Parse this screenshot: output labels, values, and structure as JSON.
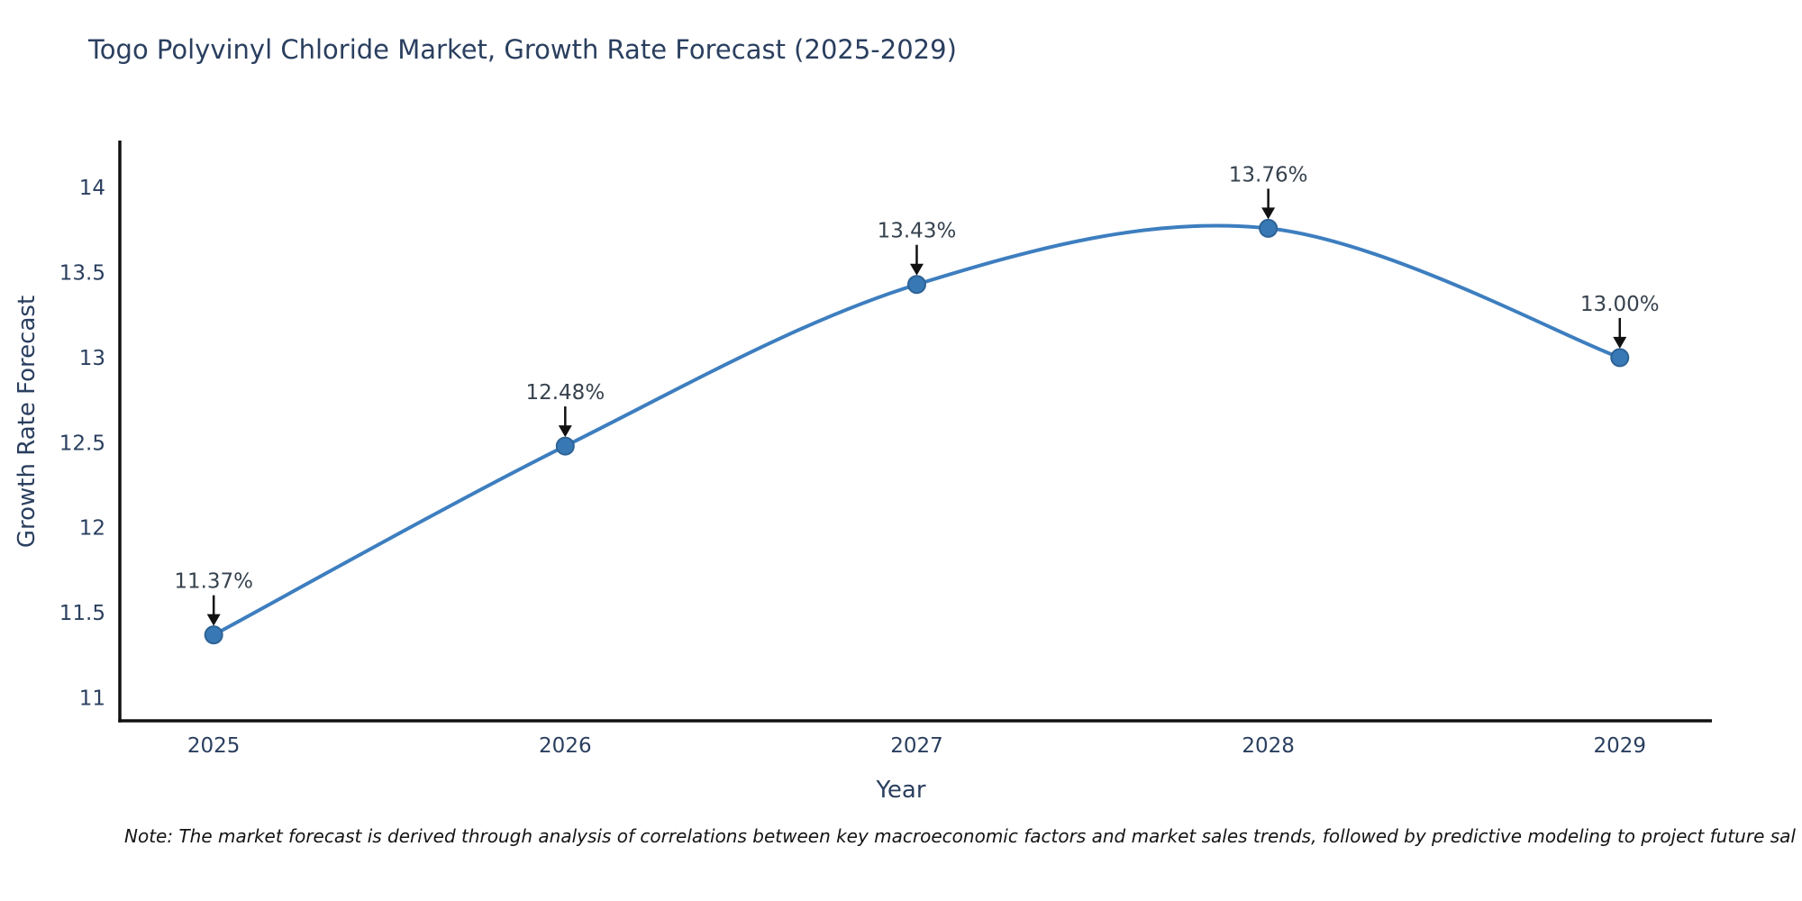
{
  "chart": {
    "title": "Togo Polyvinyl Chloride Market, Growth Rate Forecast (2025-2029)",
    "xlabel": "Year",
    "ylabel": "Growth Rate Forecast"
  },
  "note": {
    "text": "Note: The market forecast is derived through analysis of correlations between key macroeconomic factors and market sales trends, followed by predictive modeling to project future sal"
  },
  "chart_data": {
    "type": "line",
    "title": "Togo Polyvinyl Chloride Market, Growth Rate Forecast (2025-2029)",
    "xlabel": "Year",
    "ylabel": "Growth Rate Forecast",
    "x": [
      2025,
      2026,
      2027,
      2028,
      2029
    ],
    "series": [
      {
        "name": "Growth Rate Forecast",
        "values": [
          11.37,
          12.48,
          13.43,
          13.76,
          13.0
        ],
        "point_labels": [
          "11.37%",
          "12.48%",
          "13.43%",
          "13.76%",
          "13.00%"
        ]
      }
    ],
    "x_tick_labels": [
      "2025",
      "2026",
      "2027",
      "2028",
      "2029"
    ],
    "y_tick_values": [
      11,
      11.5,
      12,
      12.5,
      13,
      13.5,
      14
    ],
    "y_tick_labels": [
      "11",
      "11.5",
      "12",
      "12.5",
      "13",
      "13.5",
      "14"
    ],
    "xlim": [
      2024.733,
      2029.262
    ],
    "ylim": [
      10.865,
      14.276
    ],
    "grid": false,
    "legend_position": "none",
    "line_shape": "spline",
    "annotation_style": "arrow-down-to-point",
    "colors": {
      "line": "#3d7ebf",
      "marker_fill": "#3878b4",
      "marker_edge": "#2d6396",
      "axis": "#111111",
      "tick_text": "#2a3f5f",
      "annotation_text": "#36424e",
      "arrow": "#111111",
      "title_text": "#2a3f5f"
    }
  }
}
